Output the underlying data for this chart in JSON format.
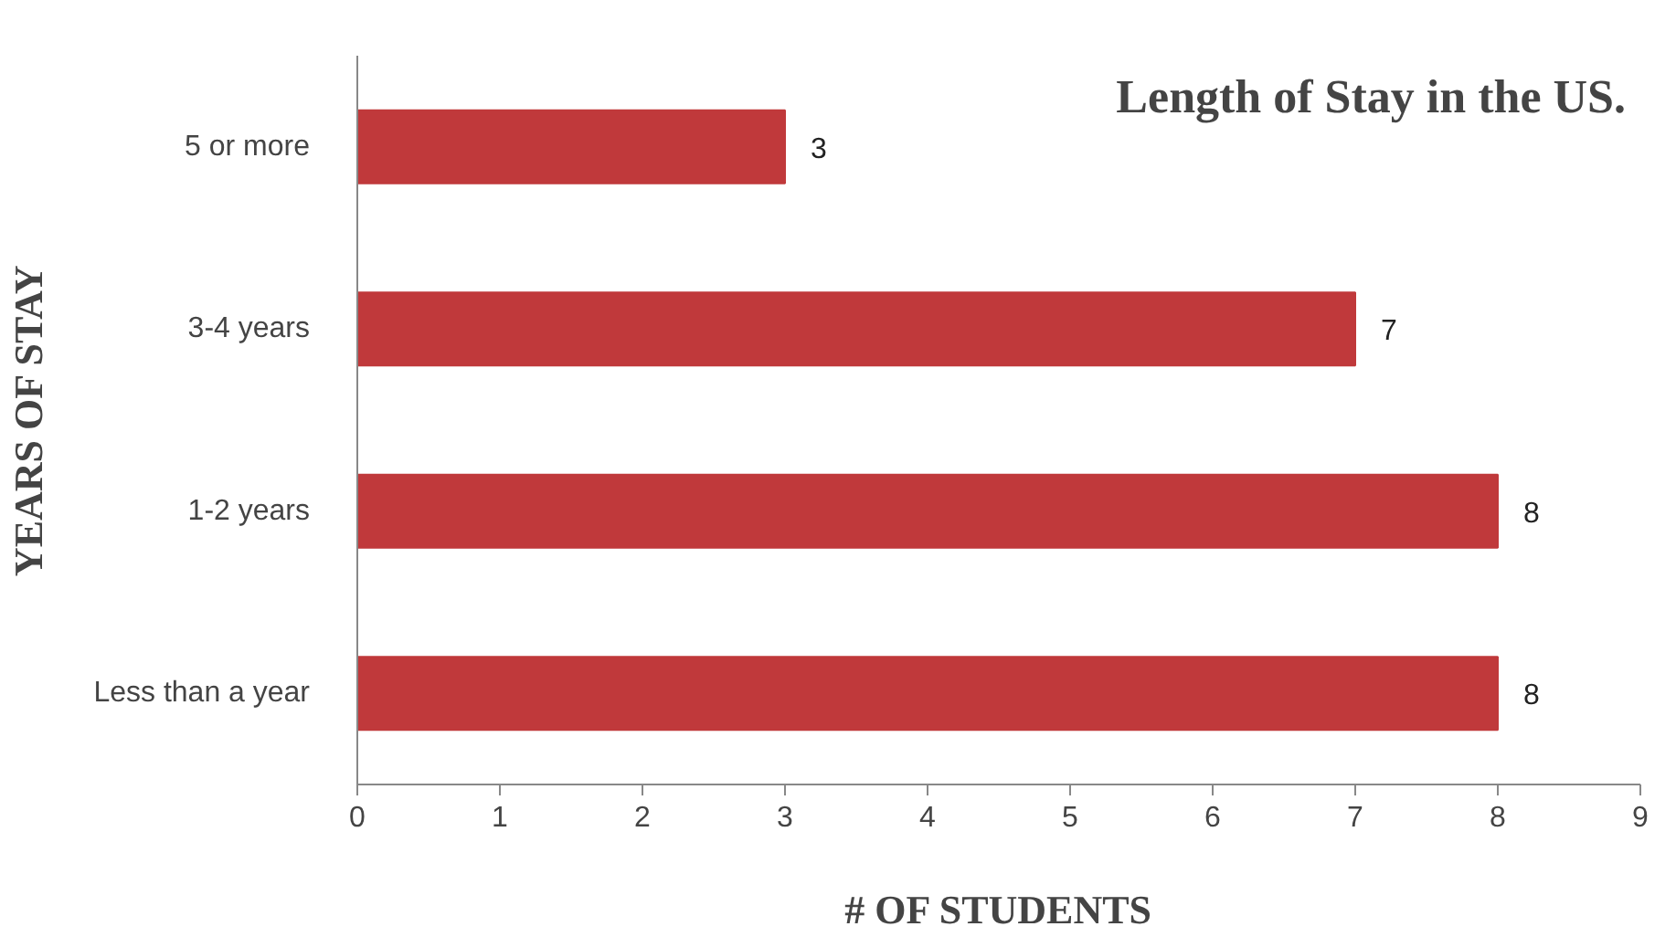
{
  "chart_data": {
    "type": "bar",
    "orientation": "horizontal",
    "title": "Length of Stay in the US.",
    "xlabel": "# OF STUDENTS",
    "ylabel": "YEARS OF STAY",
    "categories": [
      "5 or more",
      "3-4 years",
      "1-2 years",
      "Less than a year"
    ],
    "values": [
      3,
      7,
      8,
      8
    ],
    "color": "#c0393b",
    "xlim": [
      0,
      9
    ],
    "xticks": [
      0,
      1,
      2,
      3,
      4,
      5,
      6,
      7,
      8,
      9
    ],
    "data_labels": true,
    "grid": false
  }
}
